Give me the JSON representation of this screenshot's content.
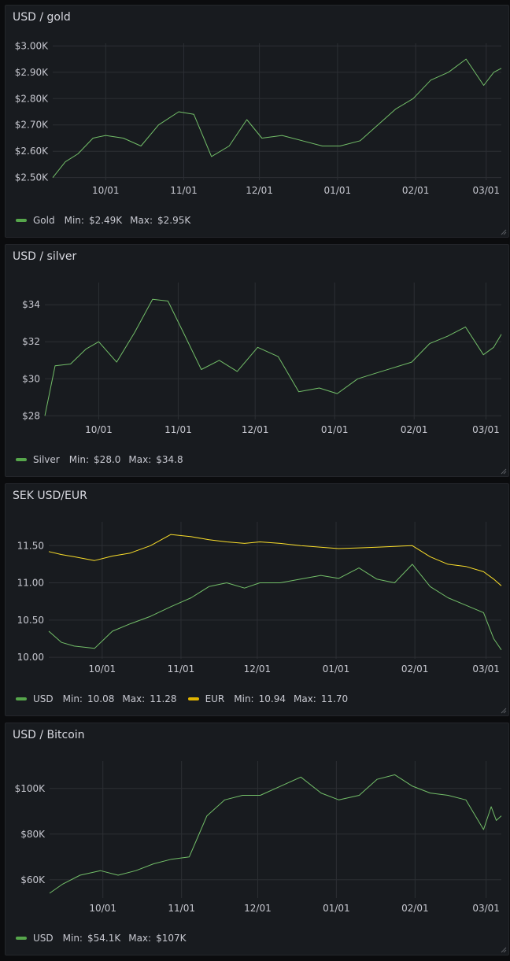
{
  "colors": {
    "green": "#73bf69",
    "yellow": "#fade2a",
    "grid": "#2c2f34",
    "legend_green": "#56a64b",
    "legend_yellow": "#e0b400"
  },
  "panels": [
    {
      "title": "USD / gold",
      "legend": [
        {
          "name": "Gold",
          "color": "#56a64b",
          "min_label": "Min:",
          "min": "$2.49K",
          "max_label": "Max:",
          "max": "$2.95K"
        }
      ]
    },
    {
      "title": "USD / silver",
      "legend": [
        {
          "name": "Silver",
          "color": "#56a64b",
          "min_label": "Min:",
          "min": "$28.0",
          "max_label": "Max:",
          "max": "$34.8"
        }
      ]
    },
    {
      "title": "SEK USD/EUR",
      "legend": [
        {
          "name": "USD",
          "color": "#56a64b",
          "min_label": "Min:",
          "min": "10.08",
          "max_label": "Max:",
          "max": "11.28"
        },
        {
          "name": "EUR",
          "color": "#e0b400",
          "min_label": "Min:",
          "min": "10.94",
          "max_label": "Max:",
          "max": "11.70"
        }
      ]
    },
    {
      "title": "USD / Bitcoin",
      "legend": [
        {
          "name": "USD",
          "color": "#56a64b",
          "min_label": "Min:",
          "min": "$54.1K",
          "max_label": "Max:",
          "max": "$107K"
        }
      ]
    }
  ],
  "chart_data": [
    {
      "type": "line",
      "title": "USD / gold",
      "x_ticks": [
        "10/01",
        "11/01",
        "12/01",
        "01/01",
        "02/01",
        "03/01"
      ],
      "y_ticks": [
        "$2.50K",
        "$2.60K",
        "$2.70K",
        "$2.80K",
        "$2.90K",
        "$3.00K"
      ],
      "ylim": [
        2490,
        3010
      ],
      "grid": true,
      "series": [
        {
          "name": "Gold",
          "color": "#73bf69",
          "x": [
            "09/10",
            "09/15",
            "09/20",
            "09/26",
            "10/01",
            "10/08",
            "10/15",
            "10/22",
            "10/30",
            "11/05",
            "11/12",
            "11/19",
            "11/26",
            "12/02",
            "12/10",
            "12/18",
            "12/26",
            "01/02",
            "01/10",
            "01/17",
            "01/24",
            "01/31",
            "02/07",
            "02/14",
            "02/21",
            "02/28",
            "03/04",
            "03/07"
          ],
          "values": [
            2500,
            2560,
            2590,
            2650,
            2660,
            2650,
            2620,
            2700,
            2750,
            2740,
            2580,
            2620,
            2720,
            2650,
            2660,
            2640,
            2620,
            2620,
            2640,
            2700,
            2760,
            2800,
            2870,
            2900,
            2950,
            2850,
            2900,
            2915
          ]
        }
      ]
    },
    {
      "type": "line",
      "title": "USD / silver",
      "x_ticks": [
        "10/01",
        "11/01",
        "12/01",
        "01/01",
        "02/01",
        "03/01"
      ],
      "y_ticks": [
        "$28",
        "$30",
        "$32",
        "$34"
      ],
      "ylim": [
        27.8,
        35.2
      ],
      "grid": true,
      "series": [
        {
          "name": "Silver",
          "color": "#73bf69",
          "x": [
            "09/10",
            "09/14",
            "09/20",
            "09/26",
            "10/01",
            "10/08",
            "10/15",
            "10/22",
            "10/28",
            "11/03",
            "11/10",
            "11/17",
            "11/24",
            "12/02",
            "12/10",
            "12/18",
            "12/26",
            "01/02",
            "01/10",
            "01/17",
            "01/24",
            "01/31",
            "02/07",
            "02/14",
            "02/21",
            "02/28",
            "03/04",
            "03/07"
          ],
          "values": [
            28.0,
            30.7,
            30.8,
            31.6,
            32.0,
            30.9,
            32.5,
            34.3,
            34.2,
            32.5,
            30.5,
            31.0,
            30.4,
            31.7,
            31.2,
            29.3,
            29.5,
            29.2,
            30.0,
            30.3,
            30.6,
            30.9,
            31.9,
            32.3,
            32.8,
            31.3,
            31.7,
            32.4
          ]
        }
      ]
    },
    {
      "type": "line",
      "title": "SEK USD/EUR",
      "x_ticks": [
        "10/01",
        "11/01",
        "12/01",
        "01/01",
        "02/01",
        "03/01"
      ],
      "y_ticks": [
        "10.00",
        "10.50",
        "11.00",
        "11.50"
      ],
      "ylim": [
        9.98,
        11.82
      ],
      "grid": true,
      "series": [
        {
          "name": "USD",
          "color": "#73bf69",
          "x": [
            "09/10",
            "09/15",
            "09/20",
            "09/28",
            "10/05",
            "10/12",
            "10/20",
            "10/28",
            "11/05",
            "11/12",
            "11/19",
            "11/26",
            "12/02",
            "12/10",
            "12/18",
            "12/26",
            "01/02",
            "01/10",
            "01/17",
            "01/24",
            "01/31",
            "02/07",
            "02/14",
            "02/21",
            "02/28",
            "03/04",
            "03/07"
          ],
          "values": [
            10.35,
            10.2,
            10.15,
            10.12,
            10.35,
            10.45,
            10.55,
            10.68,
            10.8,
            10.95,
            11.0,
            10.93,
            11.0,
            11.0,
            11.05,
            11.1,
            11.06,
            11.2,
            11.05,
            11.0,
            11.25,
            10.95,
            10.8,
            10.7,
            10.6,
            10.25,
            10.1
          ]
        },
        {
          "name": "EUR",
          "color": "#fade2a",
          "x": [
            "09/10",
            "09/15",
            "09/20",
            "09/28",
            "10/05",
            "10/12",
            "10/20",
            "10/28",
            "11/05",
            "11/12",
            "11/19",
            "11/26",
            "12/02",
            "12/10",
            "12/18",
            "12/26",
            "01/02",
            "01/10",
            "01/17",
            "01/24",
            "01/31",
            "02/07",
            "02/14",
            "02/21",
            "02/28",
            "03/04",
            "03/07"
          ],
          "values": [
            11.42,
            11.38,
            11.35,
            11.3,
            11.36,
            11.4,
            11.5,
            11.65,
            11.62,
            11.58,
            11.55,
            11.53,
            11.55,
            11.53,
            11.5,
            11.48,
            11.46,
            11.47,
            11.48,
            11.49,
            11.5,
            11.35,
            11.25,
            11.22,
            11.15,
            11.05,
            10.96
          ]
        }
      ]
    },
    {
      "type": "line",
      "title": "USD / Bitcoin",
      "x_ticks": [
        "10/01",
        "11/01",
        "12/01",
        "01/01",
        "02/01",
        "03/01"
      ],
      "y_ticks": [
        "$60K",
        "$80K",
        "$100K"
      ],
      "ylim": [
        52,
        112
      ],
      "grid": true,
      "series": [
        {
          "name": "USD",
          "color": "#73bf69",
          "x": [
            "09/10",
            "09/15",
            "09/22",
            "09/30",
            "10/07",
            "10/14",
            "10/21",
            "10/28",
            "11/04",
            "11/11",
            "11/18",
            "11/25",
            "12/02",
            "12/10",
            "12/18",
            "12/26",
            "01/02",
            "01/10",
            "01/17",
            "01/24",
            "01/31",
            "02/07",
            "02/14",
            "02/21",
            "02/28",
            "03/03",
            "03/05",
            "03/07"
          ],
          "values": [
            54.1,
            58,
            62,
            64,
            62,
            64,
            67,
            69,
            70,
            88,
            95,
            97,
            97,
            101,
            105,
            98,
            95,
            97,
            104,
            106,
            101,
            98,
            97,
            95,
            82,
            92,
            86,
            88
          ]
        }
      ]
    }
  ]
}
